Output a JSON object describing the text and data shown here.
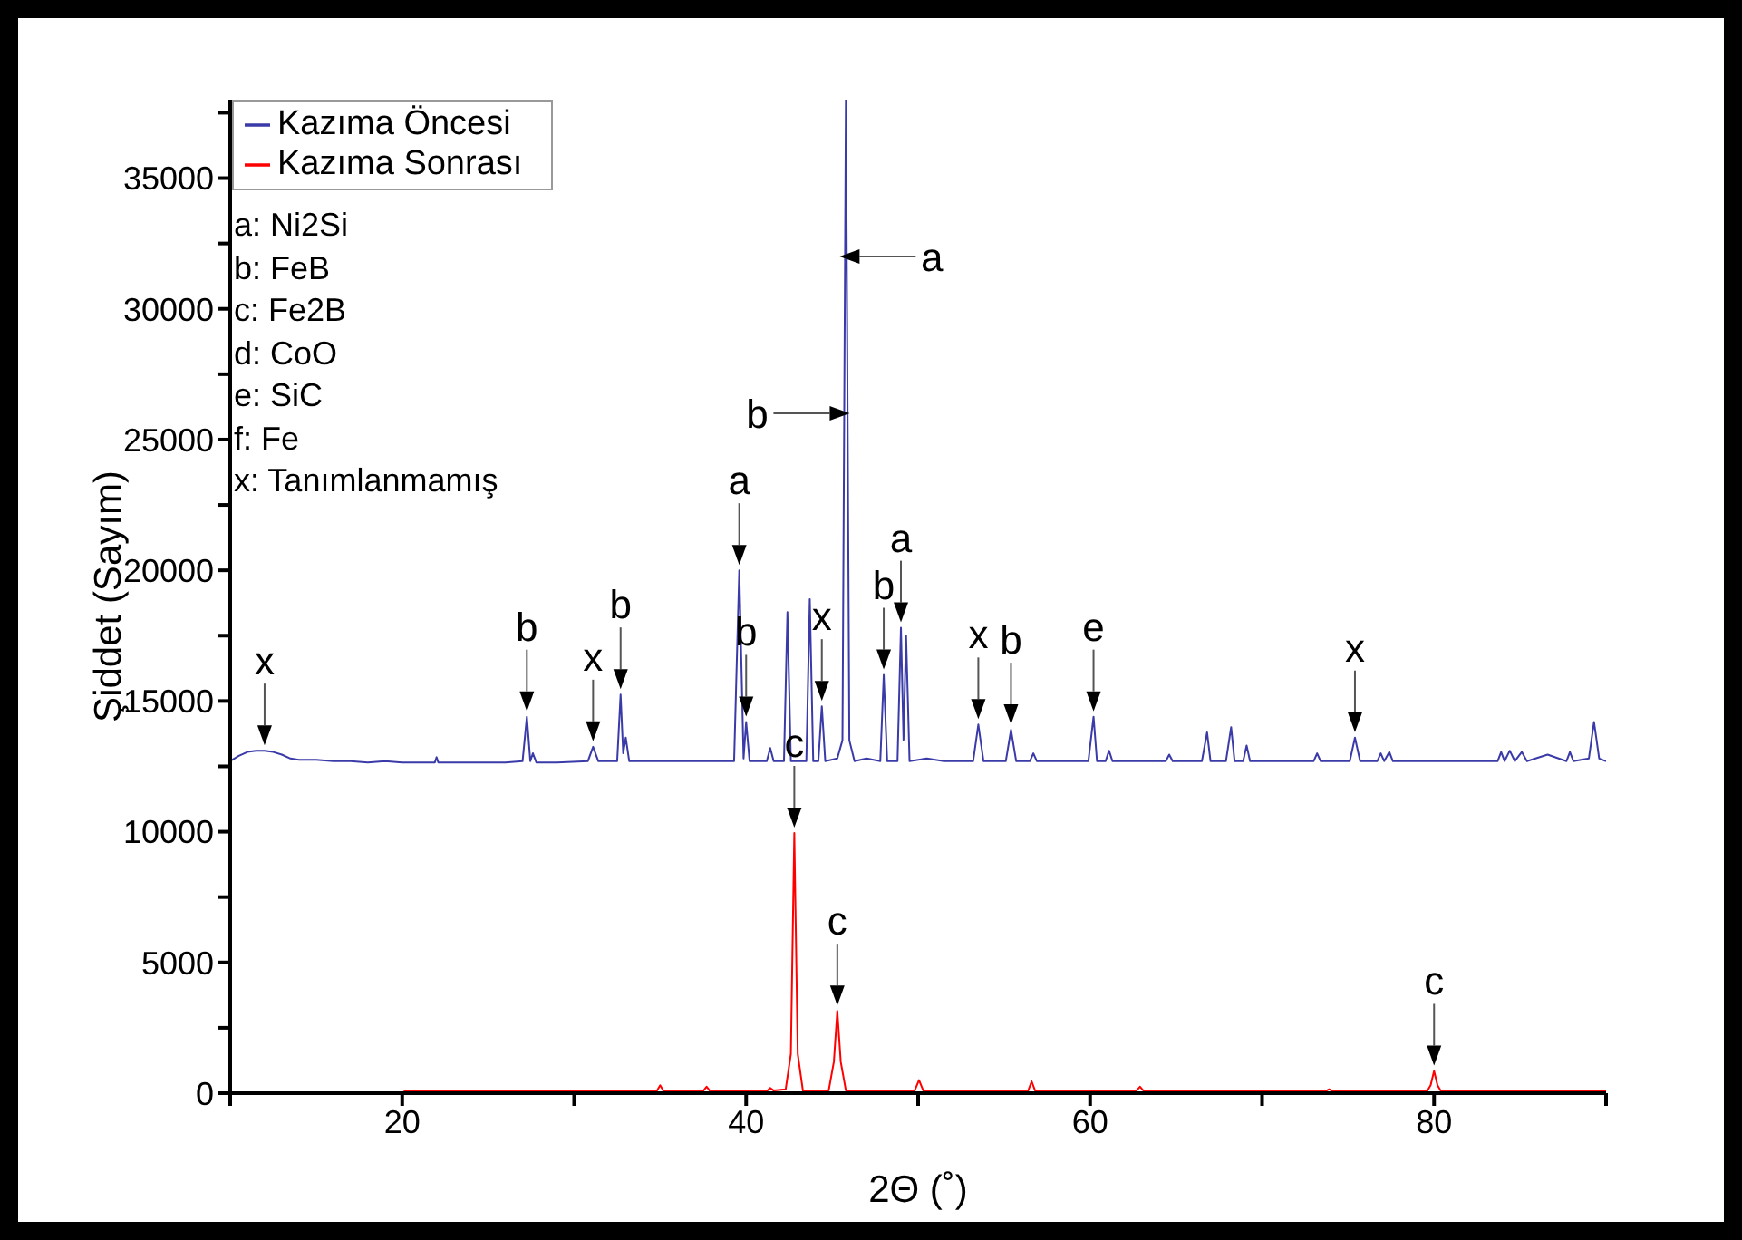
{
  "chart_data": {
    "type": "line",
    "xlabel": "2Θ (˚)",
    "ylabel": "Şiddet (Sayım)",
    "xlim": [
      10,
      90
    ],
    "ylim": [
      0,
      38000
    ],
    "xticks": [
      {
        "value": 10,
        "label": null
      },
      20,
      {
        "value": 30,
        "label": null
      },
      40,
      {
        "value": 50,
        "label": null
      },
      60,
      {
        "value": 70,
        "label": null
      },
      80,
      {
        "value": 90,
        "label": null
      }
    ],
    "yticks": [
      0,
      {
        "value": 2500,
        "label": null
      },
      5000,
      {
        "value": 7500,
        "label": null
      },
      10000,
      {
        "value": 12500,
        "label": null
      },
      15000,
      {
        "value": 17500,
        "label": null
      },
      20000,
      {
        "value": 22500,
        "label": null
      },
      25000,
      {
        "value": 27500,
        "label": null
      },
      30000,
      {
        "value": 32500,
        "label": null
      },
      35000,
      {
        "value": 37500,
        "label": null
      }
    ],
    "grid": false,
    "legend": "top left",
    "marker": "none",
    "line_style": "solid",
    "series": [
      {
        "name": "Kazıma Öncesi",
        "color": "#3a3aa8",
        "x": [
          10,
          10.5,
          11,
          11.5,
          12,
          12.5,
          13,
          13.5,
          14,
          15,
          16,
          17,
          18,
          19,
          20,
          21,
          21.9,
          22,
          22.1,
          24,
          26,
          27.0,
          27.25,
          27.45,
          27.6,
          27.8,
          29,
          30.8,
          31.1,
          31.4,
          32.5,
          32.7,
          32.85,
          33.0,
          33.2,
          35,
          37,
          39.3,
          39.6,
          39.85,
          40.0,
          40.2,
          41.2,
          41.4,
          41.6,
          42.2,
          42.4,
          42.6,
          43.5,
          43.7,
          43.9,
          44.2,
          44.4,
          44.6,
          45.3,
          45.6,
          45.8,
          46.0,
          46.3,
          47.0,
          47.8,
          48.0,
          48.2,
          48.8,
          49.0,
          49.15,
          49.3,
          49.5,
          50.5,
          51.5,
          53.2,
          53.5,
          53.8,
          55.1,
          55.4,
          55.7,
          56.5,
          56.7,
          56.9,
          58,
          59.9,
          60.2,
          60.4,
          60.9,
          61.1,
          61.3,
          63,
          64.4,
          64.6,
          64.8,
          66.5,
          66.8,
          67.0,
          67.9,
          68.2,
          68.4,
          68.9,
          69.1,
          69.3,
          71,
          73.0,
          73.2,
          73.4,
          75.1,
          75.4,
          75.7,
          76.7,
          76.9,
          77.1,
          77.4,
          77.6,
          79,
          81,
          83.7,
          83.9,
          84.1,
          84.4,
          84.7,
          85.1,
          85.4,
          86.6,
          87.7,
          87.9,
          88.1,
          89.0,
          89.3,
          89.6,
          90
        ],
        "values": [
          12700,
          12900,
          13050,
          13100,
          13100,
          13050,
          12950,
          12800,
          12750,
          12750,
          12700,
          12700,
          12650,
          12700,
          12650,
          12650,
          12650,
          12850,
          12650,
          12650,
          12650,
          12700,
          14400,
          12700,
          13000,
          12650,
          12650,
          12700,
          13250,
          12700,
          12700,
          15250,
          13000,
          13600,
          12700,
          12700,
          12700,
          12700,
          20000,
          12800,
          14200,
          12700,
          12700,
          13200,
          12700,
          12700,
          18400,
          12700,
          12700,
          18900,
          12700,
          12700,
          14800,
          12700,
          12800,
          13500,
          38000,
          13500,
          12700,
          12800,
          12700,
          16000,
          12700,
          12700,
          17800,
          13500,
          17500,
          12700,
          12800,
          12700,
          12700,
          14100,
          12700,
          12700,
          13900,
          12700,
          12700,
          13000,
          12700,
          12700,
          12700,
          14400,
          12700,
          12700,
          13100,
          12700,
          12700,
          12700,
          12950,
          12700,
          12700,
          13800,
          12700,
          12700,
          14000,
          12700,
          12700,
          13300,
          12700,
          12700,
          12700,
          13000,
          12700,
          12700,
          13600,
          12700,
          12700,
          13000,
          12700,
          13050,
          12700,
          12700,
          12700,
          12700,
          13050,
          12700,
          13100,
          12700,
          13050,
          12700,
          12950,
          12700,
          13050,
          12700,
          12800,
          14200,
          12800,
          12700
        ]
      },
      {
        "name": "Kazıma Sonrası",
        "color": "#ff0000",
        "x": [
          10,
          20,
          20.2,
          25,
          30,
          34.8,
          35.0,
          35.2,
          37.5,
          37.7,
          37.9,
          41.2,
          41.4,
          41.6,
          42.3,
          42.6,
          42.8,
          43.0,
          43.3,
          44.8,
          45.1,
          45.3,
          45.5,
          45.8,
          49.8,
          50.05,
          50.3,
          56.4,
          56.6,
          56.8,
          62.7,
          62.9,
          63.1,
          73.7,
          73.9,
          74.1,
          79.6,
          79.8,
          80.0,
          80.2,
          80.4,
          90
        ],
        "values": [
          0,
          0,
          100,
          80,
          100,
          80,
          300,
          80,
          80,
          250,
          80,
          80,
          200,
          100,
          150,
          1500,
          9950,
          1500,
          100,
          100,
          1200,
          3150,
          1200,
          100,
          100,
          500,
          100,
          100,
          450,
          100,
          100,
          250,
          100,
          80,
          150,
          80,
          80,
          300,
          850,
          300,
          80,
          80
        ]
      }
    ],
    "annotations": [
      "a: Ni2Si",
      "b: FeB",
      "c: Fe2B",
      "d: CoO",
      "e: SiC",
      "f: Fe",
      "x: Tanımlanmamış",
      {
        "text": "x",
        "x": 12.0,
        "y": 13100
      },
      {
        "text": "b",
        "x": 27.25,
        "y": 14400
      },
      {
        "text": "x",
        "x": 31.1,
        "y": 13250
      },
      {
        "text": "b",
        "x": 32.7,
        "y": 15250
      },
      {
        "text": "a",
        "x": 39.6,
        "y": 20000
      },
      {
        "text": "b",
        "x": 40.0,
        "y": 14200
      },
      {
        "text": "b",
        "x": 45.7,
        "y": 26000
      },
      {
        "text": "x",
        "x": 44.4,
        "y": 14800
      },
      {
        "text": "a",
        "x": 45.75,
        "y": 32000
      },
      {
        "text": "b",
        "x": 48.0,
        "y": 16000
      },
      {
        "text": "a",
        "x": 49.0,
        "y": 17800
      },
      {
        "text": "x",
        "x": 53.5,
        "y": 14100
      },
      {
        "text": "b",
        "x": 55.4,
        "y": 13900
      },
      {
        "text": "e",
        "x": 60.2,
        "y": 14400
      },
      {
        "text": "x",
        "x": 75.4,
        "y": 13600
      },
      {
        "text": "c",
        "x": 42.8,
        "y": 9950
      },
      {
        "text": "c",
        "x": 45.3,
        "y": 3150
      },
      {
        "text": "c",
        "x": 80.0,
        "y": 850
      }
    ]
  }
}
